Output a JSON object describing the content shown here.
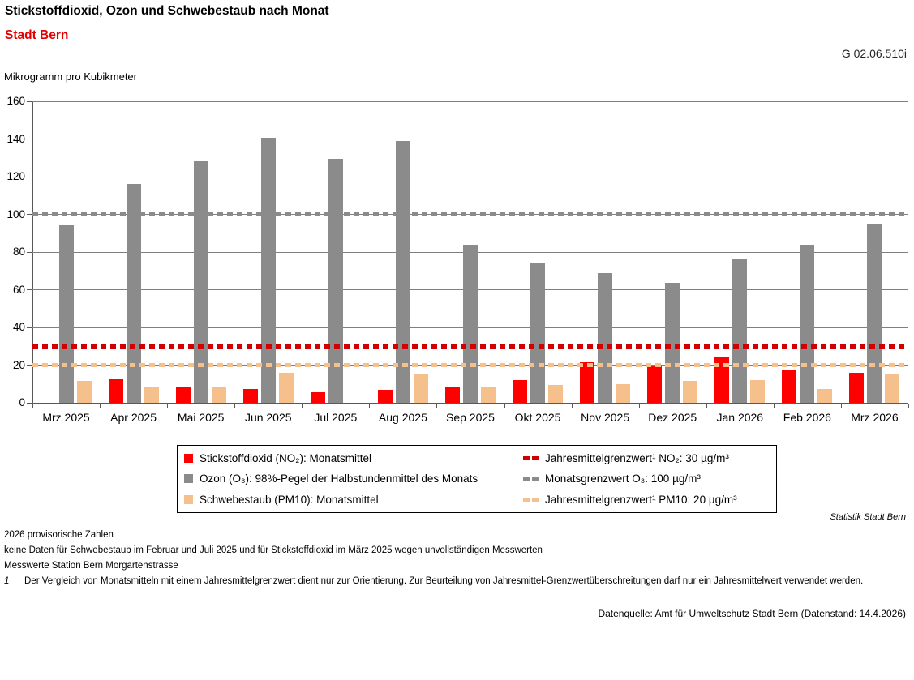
{
  "header": {
    "title": "Stickstoffdioxid, Ozon und Schwebestaub nach Monat",
    "subtitle": "Stadt Bern",
    "code": "G 02.06.510i"
  },
  "chart_data": {
    "type": "bar",
    "title": "Stickstoffdioxid, Ozon und Schwebestaub nach Monat",
    "subtitle": "Stadt Bern",
    "ylabel": "Mikrogramm pro Kubikmeter",
    "xlabel": "",
    "ylim": [
      0,
      160
    ],
    "ytick_step": 20,
    "grid": true,
    "legend_position": "bottom",
    "categories": [
      "Mrz 2025",
      "Apr 2025",
      "Mai 2025",
      "Jun 2025",
      "Jul 2025",
      "Aug 2025",
      "Sep 2025",
      "Okt 2025",
      "Nov 2025",
      "Dez 2025",
      "Jan 2026",
      "Feb 2026",
      "Mrz 2026"
    ],
    "series": [
      {
        "key": "no2",
        "name": "Stickstoffdioxid (NO₂): Monatsmittel",
        "color": "#fe0000",
        "values": [
          null,
          12.5,
          8.5,
          7.5,
          5.5,
          7,
          8.5,
          12,
          21.5,
          19.5,
          24.5,
          17,
          16
        ]
      },
      {
        "key": "o3",
        "name": "Ozon (O₃): 98%-Pegel der Halbstundenmittel des Monats",
        "color": "#8b8b8b",
        "values": [
          94.5,
          116,
          128,
          140.5,
          129.5,
          139,
          84,
          74,
          69,
          63.5,
          76.5,
          84,
          95
        ]
      },
      {
        "key": "pm10",
        "name": "Schwebestaub (PM10): Monatsmittel",
        "color": "#f5c08c",
        "values": [
          11.5,
          8.5,
          8.5,
          16,
          null,
          15,
          8,
          9.5,
          10,
          11.5,
          12,
          7.5,
          15
        ]
      }
    ],
    "reference_lines": [
      {
        "key": "no2",
        "name": "Jahresmittelgrenzwert¹  NO₂: 30 µg/m³",
        "value": 30,
        "color": "#d10000",
        "thickness": 6
      },
      {
        "key": "o3",
        "name": "Monatsgrenzwert O₃: 100 µg/m³",
        "value": 100,
        "color": "#8b8b8b",
        "thickness": 5
      },
      {
        "key": "pm10",
        "name": "Jahresmittelgrenzwert¹  PM10: 20 µg/m³",
        "value": 20,
        "color": "#f5c08c",
        "thickness": 5
      }
    ]
  },
  "footer": {
    "source_right": "Statistik Stadt Bern",
    "notes": [
      "2026 provisorische Zahlen",
      "keine Daten für Schwebestaub im Februar und Juli 2025 und für Stickstoffdioxid im März 2025 wegen unvollständigen Messwerten",
      "Messwerte Station Bern Morgartenstrasse"
    ],
    "footnote_marker": "1",
    "footnote_text": "Der Vergleich von Monatsmitteln mit einem Jahresmittelgrenzwert dient nur zur Orientierung. Zur Beurteilung von Jahresmittel-Grenzwertüberschreitungen darf nur ein Jahresmittelwert verwendet werden.",
    "datasource": "Datenquelle: Amt für Umweltschutz Stadt Bern (Datenstand: 14.4.2026)"
  }
}
